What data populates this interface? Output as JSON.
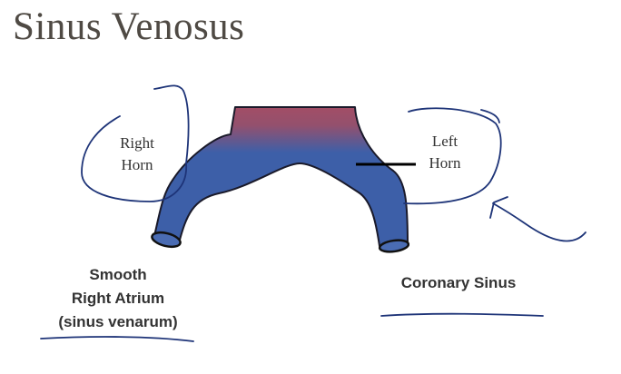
{
  "title": "Sinus Venosus",
  "labels": {
    "right_horn": [
      "Right",
      "Horn"
    ],
    "left_horn": [
      "Left",
      "Horn"
    ],
    "smooth_right_atrium": [
      "Smooth",
      "Right Atrium",
      "(sinus venarum)"
    ],
    "coronary_sinus": "Coronary Sinus"
  },
  "colors": {
    "title": "#4f4a44",
    "label_text": "#333333",
    "vessel_top": "#a24e66",
    "vessel_body": "#3d5fa8",
    "vessel_outline": "#1a1a2a",
    "annotation_ink": "#1e3478"
  }
}
